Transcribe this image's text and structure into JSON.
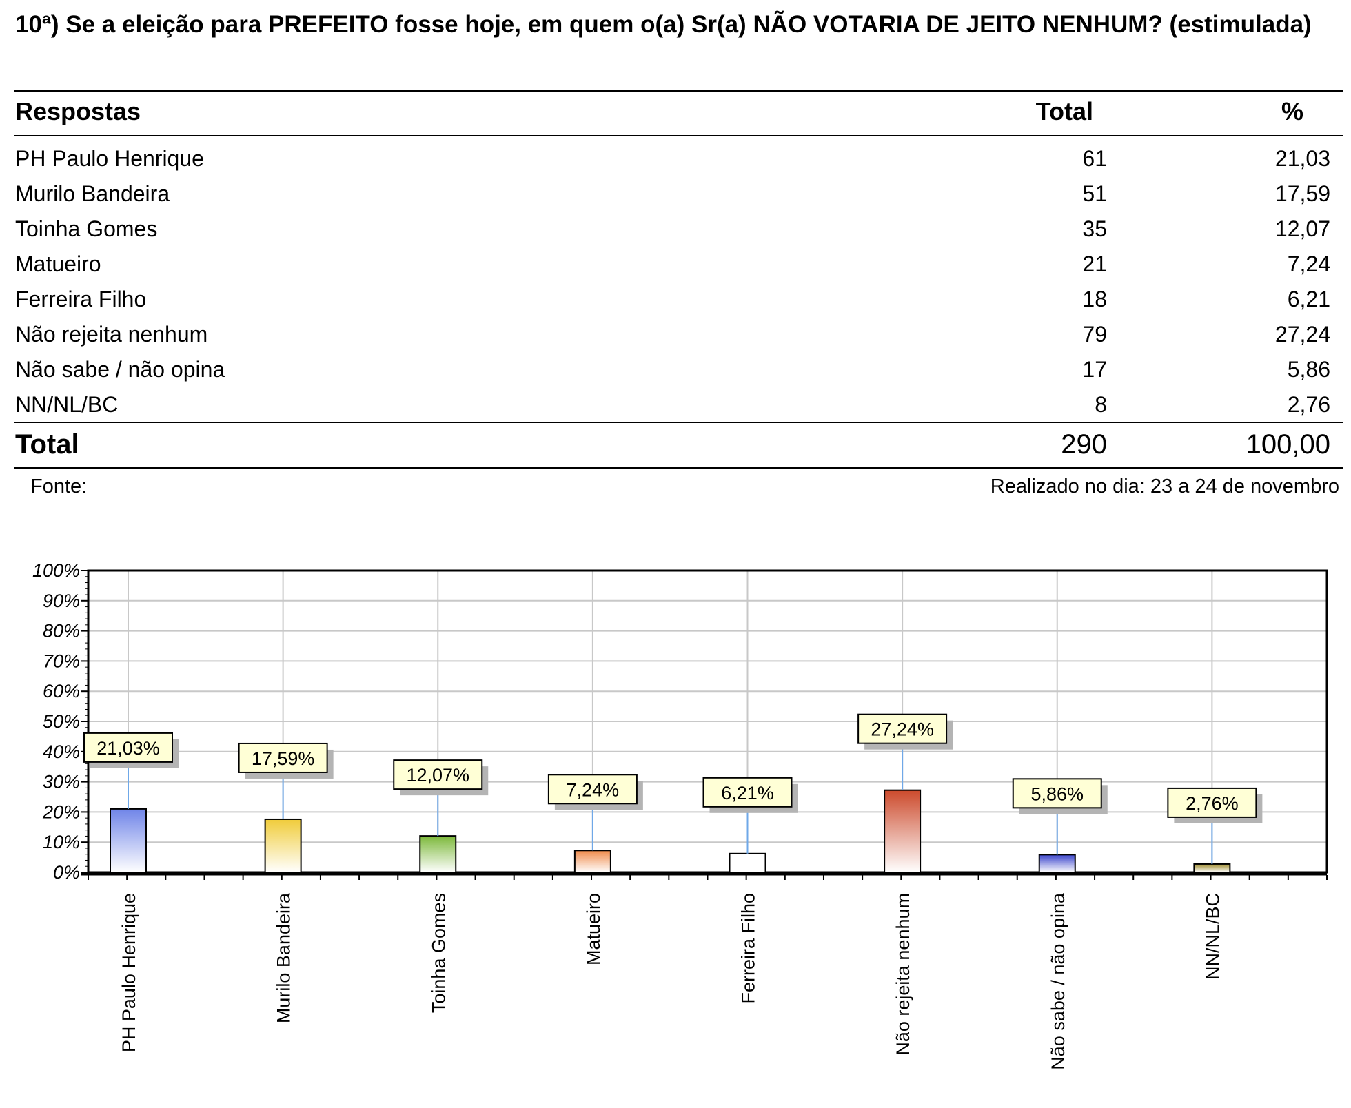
{
  "title": "10ª) Se a eleição para PREFEITO fosse hoje, em quem o(a) Sr(a) NÃO VOTARIA DE JEITO NENHUM? (estimulada)",
  "table": {
    "headers": {
      "respostas": "Respostas",
      "total": "Total",
      "pct": "%"
    },
    "rows": [
      {
        "label": "PH Paulo Henrique",
        "total": "61",
        "pct": "21,03"
      },
      {
        "label": "Murilo Bandeira",
        "total": "51",
        "pct": "17,59"
      },
      {
        "label": "Toinha Gomes",
        "total": "35",
        "pct": "12,07"
      },
      {
        "label": "Matueiro",
        "total": "21",
        "pct": "7,24"
      },
      {
        "label": "Ferreira Filho",
        "total": "18",
        "pct": "6,21"
      },
      {
        "label": "Não rejeita nenhum",
        "total": "79",
        "pct": "27,24"
      },
      {
        "label": "Não sabe / não opina",
        "total": "17",
        "pct": "5,86"
      },
      {
        "label": "NN/NL/BC",
        "total": "8",
        "pct": "2,76"
      }
    ],
    "total_row": {
      "label": "Total",
      "total": "290",
      "pct": "100,00"
    }
  },
  "footer": {
    "source": "Fonte:",
    "date": "Realizado no dia: 23 a 24 de novembro"
  },
  "chart_data": {
    "type": "bar",
    "categories": [
      "PH Paulo Henrique",
      "Murilo Bandeira",
      "Toinha Gomes",
      "Matueiro",
      "Ferreira Filho",
      "Não rejeita nenhum",
      "Não sabe / não opina",
      "NN/NL/BC"
    ],
    "values": [
      21.03,
      17.59,
      12.07,
      7.24,
      6.21,
      27.24,
      5.86,
      2.76
    ],
    "data_labels": [
      "21,03%",
      "17,59%",
      "12,07%",
      "7,24%",
      "6,21%",
      "27,24%",
      "5,86%",
      "2,76%"
    ],
    "y_ticks": [
      "0%",
      "10%",
      "20%",
      "30%",
      "40%",
      "50%",
      "60%",
      "70%",
      "80%",
      "90%",
      "100%"
    ],
    "ylim": [
      0,
      100
    ],
    "grid": true,
    "bar_colors": [
      "#6f84e8",
      "#f0cc3a",
      "#7cb83a",
      "#ef8a4a",
      "#ffffff",
      "#cc4a2c",
      "#3a44cc",
      "#9c8a2a"
    ],
    "label_box_color": "#ffffd6",
    "connector_color": "#6fa8e8"
  }
}
